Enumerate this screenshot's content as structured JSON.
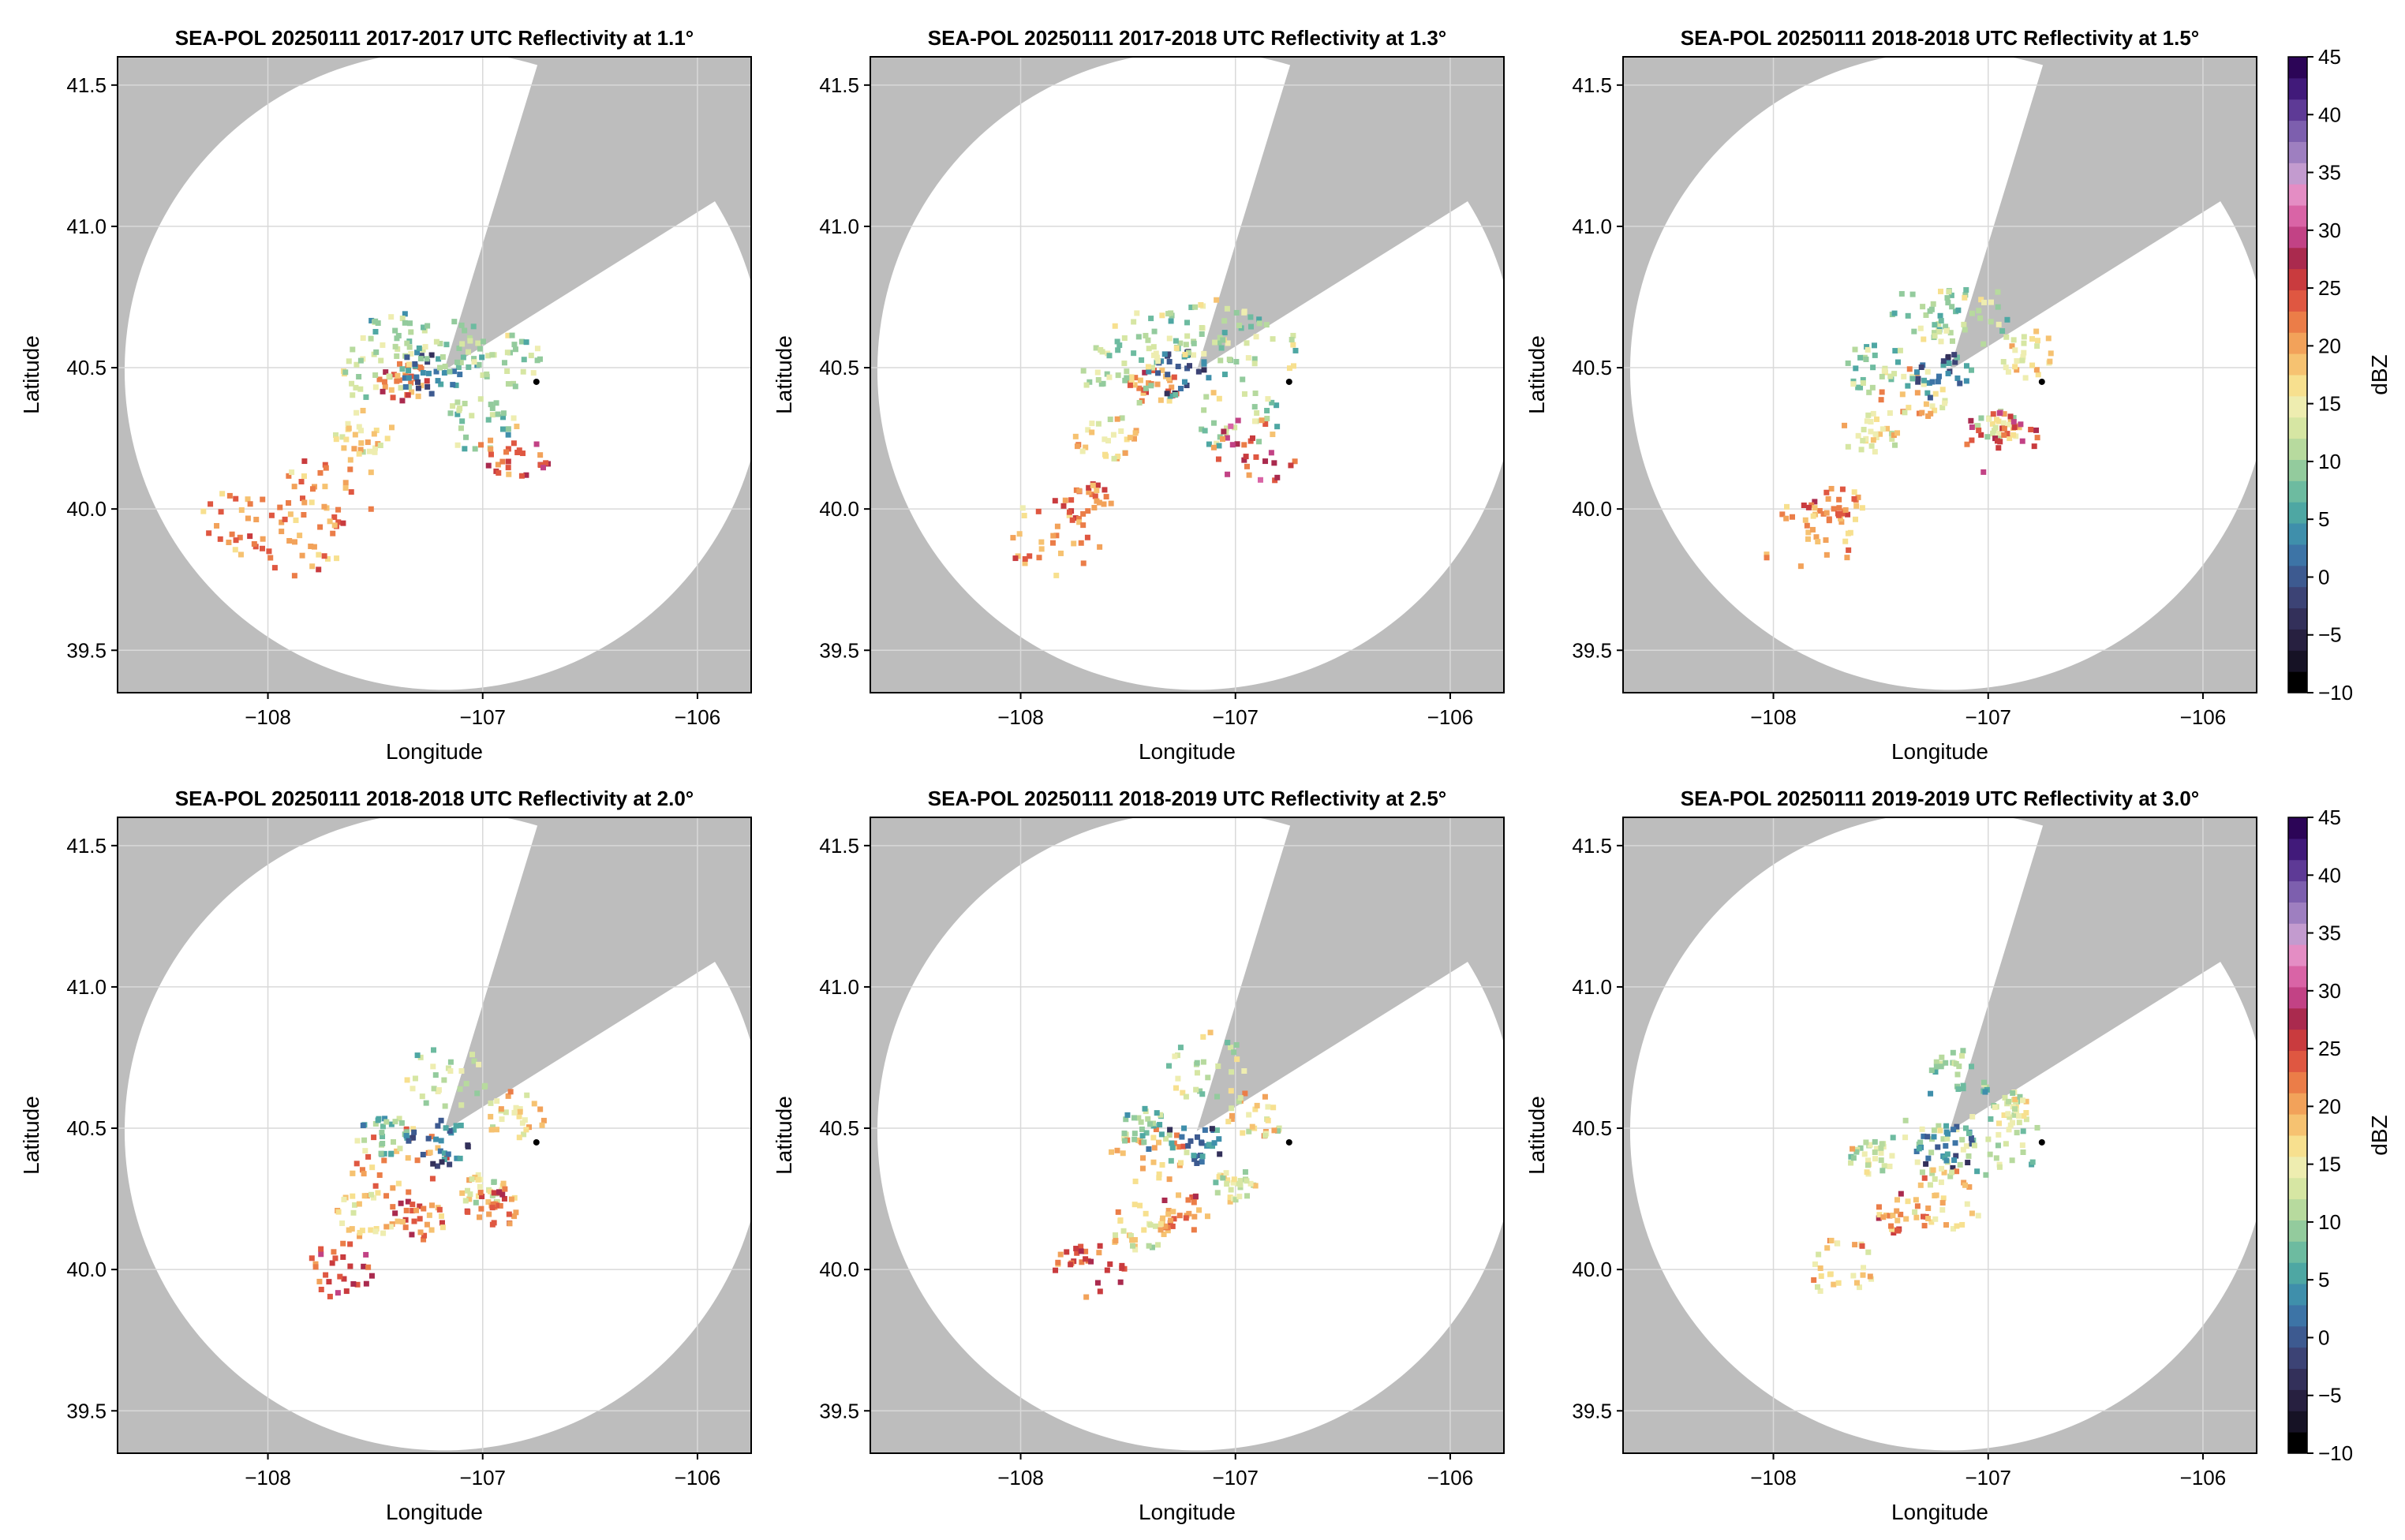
{
  "figure": {
    "colorbar": {
      "label": "dBZ",
      "ticks": [
        -10,
        -5,
        0,
        5,
        10,
        15,
        20,
        25,
        30,
        35,
        40,
        45
      ],
      "range": [
        -10,
        45
      ],
      "step": 2.5,
      "colors": [
        "#000000",
        "#161225",
        "#272040",
        "#33305a",
        "#3c4375",
        "#3d5a90",
        "#3d74a6",
        "#3f8fab",
        "#4ea7a3",
        "#6dbba0",
        "#93cb9d",
        "#b7da9e",
        "#d6e6a3",
        "#eeedb0",
        "#f7e08f",
        "#f6c271",
        "#f2a25a",
        "#eb7d48",
        "#df5741",
        "#c93b3e",
        "#aa2a4e",
        "#c24285",
        "#d964a6",
        "#e48dc4",
        "#c39bcf",
        "#9e7fc0",
        "#7d5fae",
        "#5e3a96",
        "#411a7a",
        "#2c0557"
      ]
    }
  },
  "chart_data": [
    {
      "type": "heatmap",
      "title": "SEA-POL 20250111 2017-2017 UTC Reflectivity at 1.1°",
      "xlabel": "Longitude",
      "ylabel": "Latitude",
      "xlim": [
        -108.7,
        -105.75
      ],
      "ylim": [
        39.35,
        41.6
      ],
      "xticks": [
        -108,
        -107,
        -106
      ],
      "xtick_labels": [
        "−108",
        "−107",
        "−106"
      ],
      "yticks": [
        39.5,
        40.0,
        40.5,
        41.0,
        41.5
      ],
      "ytick_labels": [
        "39.5",
        "40.0",
        "40.5",
        "41.0",
        "41.5"
      ],
      "grid": true,
      "radar": {
        "lon": -107.18,
        "lat": 40.49,
        "max_range_lat_deg": 1.13
      },
      "blocked_sector_deg": [
        17,
        58
      ],
      "marker": {
        "lon": -106.75,
        "lat": 40.45
      },
      "units": "dBZ",
      "echo_cells": [
        {
          "lon": -107.36,
          "lat": 40.45,
          "dbz": 22
        },
        {
          "lon": -107.5,
          "lat": 40.49,
          "dbz": 12
        },
        {
          "lon": -107.25,
          "lat": 40.48,
          "dbz": 2
        },
        {
          "lon": -107.02,
          "lat": 40.3,
          "dbz": 10
        },
        {
          "lon": -106.85,
          "lat": 40.2,
          "dbz": 24
        },
        {
          "lon": -107.12,
          "lat": 40.58,
          "dbz": 10
        },
        {
          "lon": -107.4,
          "lat": 40.6,
          "dbz": 10
        },
        {
          "lon": -106.88,
          "lat": 40.52,
          "dbz": 10
        },
        {
          "lon": -107.55,
          "lat": 40.28,
          "dbz": 16
        },
        {
          "lon": -107.7,
          "lat": 40.06,
          "dbz": 20
        },
        {
          "lon": -107.86,
          "lat": 39.9,
          "dbz": 20
        },
        {
          "lon": -108.1,
          "lat": 39.95,
          "dbz": 20
        }
      ]
    },
    {
      "type": "heatmap",
      "title": "SEA-POL 20250111 2017-2018 UTC Reflectivity at 1.3°",
      "xlabel": "Longitude",
      "ylabel": "Latitude",
      "xlim": [
        -108.7,
        -105.75
      ],
      "ylim": [
        39.35,
        41.6
      ],
      "xticks": [
        -108,
        -107,
        -106
      ],
      "xtick_labels": [
        "−108",
        "−107",
        "−106"
      ],
      "yticks": [
        39.5,
        40.0,
        40.5,
        41.0,
        41.5
      ],
      "ytick_labels": [
        "39.5",
        "40.0",
        "40.5",
        "41.0",
        "41.5"
      ],
      "grid": true,
      "radar": {
        "lon": -107.18,
        "lat": 40.49,
        "max_range_lat_deg": 1.13
      },
      "blocked_sector_deg": [
        17,
        58
      ],
      "marker": {
        "lon": -106.75,
        "lat": 40.45
      },
      "units": "dBZ",
      "echo_cells": [
        {
          "lon": -107.38,
          "lat": 40.44,
          "dbz": 22
        },
        {
          "lon": -107.52,
          "lat": 40.49,
          "dbz": 12
        },
        {
          "lon": -107.26,
          "lat": 40.48,
          "dbz": 2
        },
        {
          "lon": -107.0,
          "lat": 40.32,
          "dbz": 12
        },
        {
          "lon": -106.9,
          "lat": 40.21,
          "dbz": 26
        },
        {
          "lon": -107.12,
          "lat": 40.63,
          "dbz": 12
        },
        {
          "lon": -107.4,
          "lat": 40.6,
          "dbz": 12
        },
        {
          "lon": -106.9,
          "lat": 40.56,
          "dbz": 12
        },
        {
          "lon": -107.6,
          "lat": 40.25,
          "dbz": 16
        },
        {
          "lon": -107.7,
          "lat": 40.02,
          "dbz": 22
        },
        {
          "lon": -107.85,
          "lat": 39.9,
          "dbz": 20
        }
      ]
    },
    {
      "type": "heatmap",
      "title": "SEA-POL 20250111 2018-2018 UTC Reflectivity at 1.5°",
      "xlabel": "Longitude",
      "ylabel": "Latitude",
      "xlim": [
        -108.7,
        -105.75
      ],
      "ylim": [
        39.35,
        41.6
      ],
      "xticks": [
        -108,
        -107,
        -106
      ],
      "xtick_labels": [
        "−108",
        "−107",
        "−106"
      ],
      "yticks": [
        39.5,
        40.0,
        40.5,
        41.0,
        41.5
      ],
      "ytick_labels": [
        "39.5",
        "40.0",
        "40.5",
        "41.0",
        "41.5"
      ],
      "grid": true,
      "radar": {
        "lon": -107.18,
        "lat": 40.49,
        "max_range_lat_deg": 1.13
      },
      "blocked_sector_deg": [
        17,
        58
      ],
      "marker": {
        "lon": -106.75,
        "lat": 40.45
      },
      "units": "dBZ",
      "echo_cells": [
        {
          "lon": -107.36,
          "lat": 40.42,
          "dbz": 18
        },
        {
          "lon": -107.5,
          "lat": 40.5,
          "dbz": 10
        },
        {
          "lon": -107.22,
          "lat": 40.47,
          "dbz": 2
        },
        {
          "lon": -106.95,
          "lat": 40.3,
          "dbz": 14
        },
        {
          "lon": -106.95,
          "lat": 40.22,
          "dbz": 26
        },
        {
          "lon": -106.82,
          "lat": 40.55,
          "dbz": 16
        },
        {
          "lon": -107.1,
          "lat": 40.68,
          "dbz": 12
        },
        {
          "lon": -107.3,
          "lat": 40.7,
          "dbz": 10
        },
        {
          "lon": -107.55,
          "lat": 40.28,
          "dbz": 16
        },
        {
          "lon": -107.7,
          "lat": 40.02,
          "dbz": 22
        },
        {
          "lon": -107.85,
          "lat": 39.9,
          "dbz": 20
        }
      ]
    },
    {
      "type": "heatmap",
      "title": "SEA-POL 20250111 2018-2018 UTC Reflectivity at 2.0°",
      "xlabel": "Longitude",
      "ylabel": "Latitude",
      "xlim": [
        -108.7,
        -105.75
      ],
      "ylim": [
        39.35,
        41.6
      ],
      "xticks": [
        -108,
        -107,
        -106
      ],
      "xtick_labels": [
        "−108",
        "−107",
        "−106"
      ],
      "yticks": [
        39.5,
        40.0,
        40.5,
        41.0,
        41.5
      ],
      "ytick_labels": [
        "39.5",
        "40.0",
        "40.5",
        "41.0",
        "41.5"
      ],
      "grid": true,
      "radar": {
        "lon": -107.18,
        "lat": 40.49,
        "max_range_lat_deg": 1.13
      },
      "blocked_sector_deg": [
        17,
        58
      ],
      "marker": {
        "lon": -106.75,
        "lat": 40.45
      },
      "units": "dBZ",
      "echo_cells": [
        {
          "lon": -107.4,
          "lat": 40.4,
          "dbz": 20
        },
        {
          "lon": -107.45,
          "lat": 40.48,
          "dbz": 8
        },
        {
          "lon": -107.2,
          "lat": 40.45,
          "dbz": 2
        },
        {
          "lon": -106.85,
          "lat": 40.55,
          "dbz": 16
        },
        {
          "lon": -107.15,
          "lat": 40.68,
          "dbz": 12
        },
        {
          "lon": -107.3,
          "lat": 40.18,
          "dbz": 22
        },
        {
          "lon": -107.0,
          "lat": 40.28,
          "dbz": 14
        },
        {
          "lon": -106.95,
          "lat": 40.22,
          "dbz": 22
        },
        {
          "lon": -107.55,
          "lat": 40.2,
          "dbz": 16
        },
        {
          "lon": -107.68,
          "lat": 40.0,
          "dbz": 24
        }
      ]
    },
    {
      "type": "heatmap",
      "title": "SEA-POL 20250111 2018-2019 UTC Reflectivity at 2.5°",
      "xlabel": "Longitude",
      "ylabel": "Latitude",
      "xlim": [
        -108.7,
        -105.75
      ],
      "ylim": [
        39.35,
        41.6
      ],
      "xticks": [
        -108,
        -107,
        -106
      ],
      "xtick_labels": [
        "−108",
        "−107",
        "−106"
      ],
      "yticks": [
        39.5,
        40.0,
        40.5,
        41.0,
        41.5
      ],
      "ytick_labels": [
        "39.5",
        "40.0",
        "40.5",
        "41.0",
        "41.5"
      ],
      "grid": true,
      "radar": {
        "lon": -107.18,
        "lat": 40.49,
        "max_range_lat_deg": 1.13
      },
      "blocked_sector_deg": [
        17,
        58
      ],
      "marker": {
        "lon": -106.75,
        "lat": 40.45
      },
      "units": "dBZ",
      "echo_cells": [
        {
          "lon": -107.4,
          "lat": 40.4,
          "dbz": 18
        },
        {
          "lon": -107.42,
          "lat": 40.5,
          "dbz": 8
        },
        {
          "lon": -107.2,
          "lat": 40.44,
          "dbz": 2
        },
        {
          "lon": -106.9,
          "lat": 40.55,
          "dbz": 16
        },
        {
          "lon": -107.15,
          "lat": 40.72,
          "dbz": 12
        },
        {
          "lon": -107.25,
          "lat": 40.2,
          "dbz": 22
        },
        {
          "lon": -107.0,
          "lat": 40.3,
          "dbz": 14
        },
        {
          "lon": -107.45,
          "lat": 40.15,
          "dbz": 16
        },
        {
          "lon": -107.68,
          "lat": 40.0,
          "dbz": 24
        }
      ]
    },
    {
      "type": "heatmap",
      "title": "SEA-POL 20250111 2019-2019 UTC Reflectivity at 3.0°",
      "xlabel": "Longitude",
      "ylabel": "Latitude",
      "xlim": [
        -108.7,
        -105.75
      ],
      "ylim": [
        39.35,
        41.6
      ],
      "xticks": [
        -108,
        -107,
        -106
      ],
      "xtick_labels": [
        "−108",
        "−107",
        "−106"
      ],
      "yticks": [
        39.5,
        40.0,
        40.5,
        41.0,
        41.5
      ],
      "ytick_labels": [
        "39.5",
        "40.0",
        "40.5",
        "41.0",
        "41.5"
      ],
      "grid": true,
      "radar": {
        "lon": -107.18,
        "lat": 40.49,
        "max_range_lat_deg": 1.13
      },
      "blocked_sector_deg": [
        17,
        58
      ],
      "marker": {
        "lon": -106.75,
        "lat": 40.45
      },
      "units": "dBZ",
      "echo_cells": [
        {
          "lon": -107.3,
          "lat": 40.42,
          "dbz": 12
        },
        {
          "lon": -107.2,
          "lat": 40.44,
          "dbz": 2
        },
        {
          "lon": -106.95,
          "lat": 40.45,
          "dbz": 12
        },
        {
          "lon": -106.9,
          "lat": 40.57,
          "dbz": 14
        },
        {
          "lon": -107.15,
          "lat": 40.68,
          "dbz": 10
        },
        {
          "lon": -107.2,
          "lat": 40.25,
          "dbz": 18
        },
        {
          "lon": -107.4,
          "lat": 40.2,
          "dbz": 22
        },
        {
          "lon": -107.55,
          "lat": 40.4,
          "dbz": 14
        },
        {
          "lon": -107.7,
          "lat": 40.0,
          "dbz": 18
        }
      ]
    }
  ]
}
